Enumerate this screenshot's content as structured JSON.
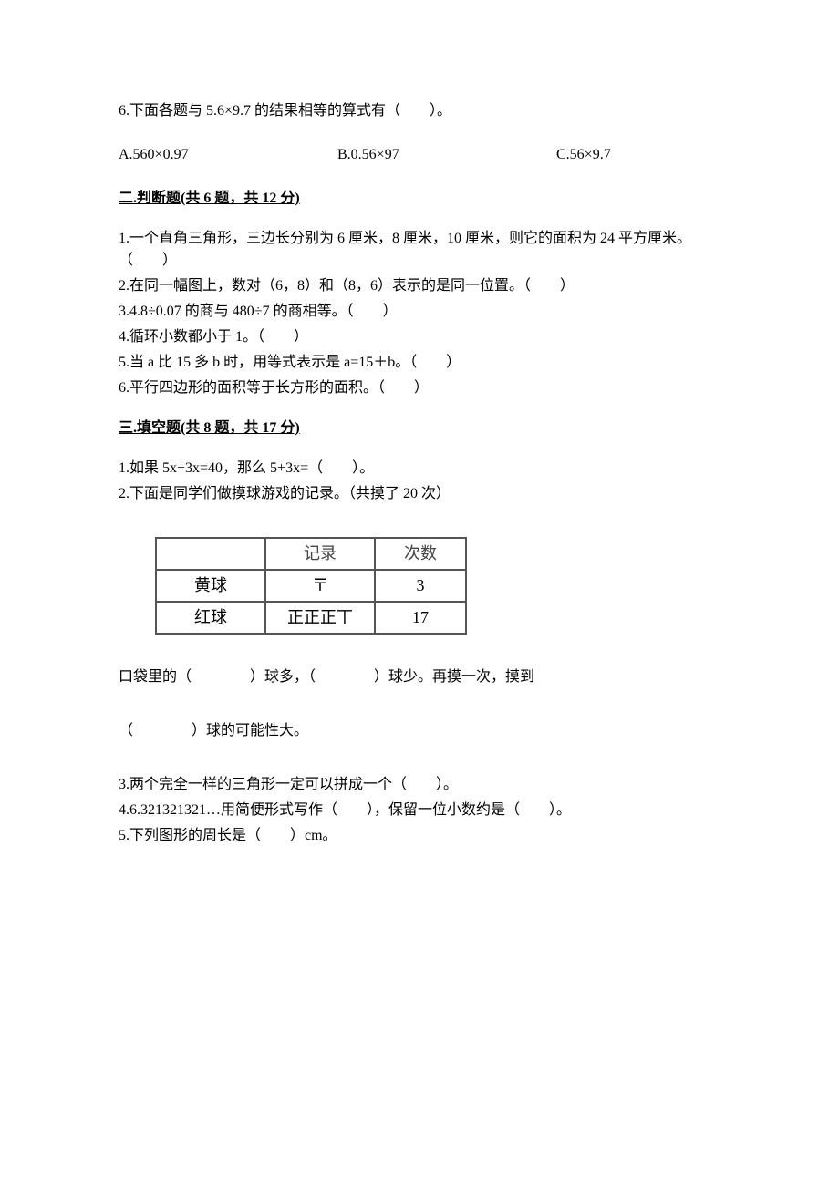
{
  "q6": {
    "text": "6.下面各题与 5.6×9.7 的结果相等的算式有（　　）。",
    "options": {
      "a": "A.560×0.97",
      "b": "B.0.56×97",
      "c": "C.56×9.7"
    }
  },
  "section2": {
    "header": "二.判断题(共 6 题，共 12 分)",
    "items": [
      "1.一个直角三角形，三边长分别为 6 厘米，8 厘米，10 厘米，则它的面积为 24 平方厘米。（　　）",
      "2.在同一幅图上，数对（6，8）和（8，6）表示的是同一位置。（　　）",
      "3.4.8÷0.07 的商与 480÷7 的商相等。（　　）",
      "4.循环小数都小于 1。（　　）",
      "5.当 a 比 15 多 b 时，用等式表示是 a=15＋b。（　　）",
      "6.平行四边形的面积等于长方形的面积。（　　）"
    ]
  },
  "section3": {
    "header": "三.填空题(共 8 题，共 17 分)",
    "items_top": [
      "1.如果 5x+3x=40，那么 5+3x=（　　）。",
      "2.下面是同学们做摸球游戏的记录。（共摸了 20 次）"
    ],
    "table": {
      "headers": [
        "",
        "记录",
        "次数"
      ],
      "rows": [
        {
          "label": "黄球",
          "record": "〒",
          "count": "3"
        },
        {
          "label": "红球",
          "record": "正正正丅",
          "count": "17"
        }
      ]
    },
    "fill_line1": "口袋里的（　　　　）球多，（　　　　）球少。再摸一次，摸到",
    "fill_line2": "（　　　　）球的可能性大。",
    "items_bottom": [
      "3.两个完全一样的三角形一定可以拼成一个（　　）。",
      "4.6.321321321…用简便形式写作（　　），保留一位小数约是（　　）。",
      "5.下列图形的周长是（　　）cm。"
    ]
  }
}
